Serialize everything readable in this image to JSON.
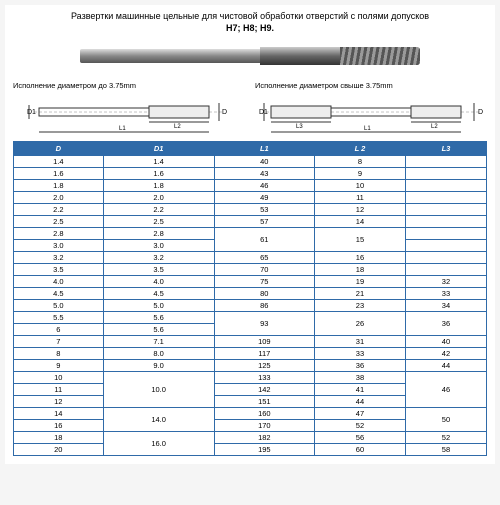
{
  "title": {
    "line1": "Развертки машинные цельные для чистовой обработки отверстий с полями допусков",
    "line2": "H7; H8; H9."
  },
  "diagrams": {
    "left": {
      "caption": "Исполнение диаметром до 3.75mm",
      "labels": {
        "D": "D",
        "D1": "D1",
        "L1": "L1",
        "L2": "L2"
      }
    },
    "right": {
      "caption": "Исполнение диаметром свыше 3.75mm",
      "labels": {
        "D": "D",
        "D1": "D1",
        "L1": "L1",
        "L2": "L2",
        "L3": "L3"
      }
    }
  },
  "table": {
    "columns": [
      "D",
      "D1",
      "L1",
      "L 2",
      "L3"
    ],
    "header_bg": "#2f6aa8",
    "header_fg": "#ffffff",
    "border_color": "#2f6aa8",
    "rows": [
      {
        "D": "1.4",
        "D1": "1.4",
        "L1": "40",
        "L2": "8",
        "L3": ""
      },
      {
        "D": "1.6",
        "D1": "1.6",
        "L1": "43",
        "L2": "9",
        "L3": ""
      },
      {
        "D": "1.8",
        "D1": "1.8",
        "L1": "46",
        "L2": "10",
        "L3": ""
      },
      {
        "D": "2.0",
        "D1": "2.0",
        "L1": "49",
        "L2": "11",
        "L3": ""
      },
      {
        "D": "2.2",
        "D1": "2.2",
        "L1": "53",
        "L2": "12",
        "L3": ""
      },
      {
        "D": "2.5",
        "D1": "2.5",
        "L1": "57",
        "L2": "14",
        "L3": ""
      },
      {
        "D": "2.8",
        "D1": "2.8",
        "L1": {
          "merge": 2,
          "v": "61"
        },
        "L2": {
          "merge": 2,
          "v": "15"
        },
        "L3": ""
      },
      {
        "D": "3.0",
        "D1": "3.0",
        "L3": ""
      },
      {
        "D": "3.2",
        "D1": "3.2",
        "L1": "65",
        "L2": "16",
        "L3": ""
      },
      {
        "D": "3.5",
        "D1": "3.5",
        "L1": "70",
        "L2": "18",
        "L3": ""
      },
      {
        "D": "4.0",
        "D1": "4.0",
        "L1": "75",
        "L2": "19",
        "L3": "32"
      },
      {
        "D": "4.5",
        "D1": "4.5",
        "L1": "80",
        "L2": "21",
        "L3": "33"
      },
      {
        "D": "5.0",
        "D1": "5.0",
        "L1": "86",
        "L2": "23",
        "L3": "34"
      },
      {
        "D": "5.5",
        "D1": "5.6",
        "L1": {
          "merge": 2,
          "v": "93"
        },
        "L2": {
          "merge": 2,
          "v": "26"
        },
        "L3": {
          "merge": 2,
          "v": "36"
        }
      },
      {
        "D": "6",
        "D1": "5.6"
      },
      {
        "D": "7",
        "D1": "7.1",
        "L1": "109",
        "L2": "31",
        "L3": "40"
      },
      {
        "D": "8",
        "D1": "8.0",
        "L1": "117",
        "L2": "33",
        "L3": "42"
      },
      {
        "D": "9",
        "D1": "9.0",
        "L1": "125",
        "L2": "36",
        "L3": "44"
      },
      {
        "D": "10",
        "D1": {
          "merge": 3,
          "v": "10.0"
        },
        "L1": "133",
        "L2": "38",
        "L3": {
          "merge": 3,
          "v": "46"
        }
      },
      {
        "D": "11",
        "L1": "142",
        "L2": "41"
      },
      {
        "D": "12",
        "L1": "151",
        "L2": "44"
      },
      {
        "D": "14",
        "D1": {
          "merge": 2,
          "v": "14.0"
        },
        "L1": "160",
        "L2": "47",
        "L3": {
          "merge": 2,
          "v": "50"
        }
      },
      {
        "D": "16",
        "L1": "170",
        "L2": "52"
      },
      {
        "D": "18",
        "D1": {
          "merge": 2,
          "v": "16.0"
        },
        "L1": "182",
        "L2": "56",
        "L3": "52"
      },
      {
        "D": "20",
        "L1": "195",
        "L2": "60",
        "L3": "58"
      }
    ]
  }
}
